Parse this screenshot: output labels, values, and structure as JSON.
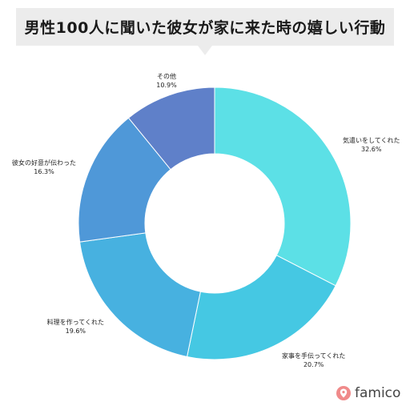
{
  "brand": {
    "name": "famico"
  },
  "chart_data": {
    "type": "pie",
    "title": "男性100人に聞いた彼女が家に来た時の嬉しい行動",
    "categories": [
      "気遣いをしてくれた",
      "家事を手伝ってくれた",
      "料理を作ってくれた",
      "彼女の好意が伝わった",
      "その他"
    ],
    "values": [
      32.6,
      20.7,
      19.6,
      16.3,
      10.9
    ],
    "value_labels": [
      "32.6%",
      "20.7%",
      "19.6%",
      "16.3%",
      "10.9%"
    ],
    "colors": [
      "#5ce0e6",
      "#45c8e3",
      "#47b1e0",
      "#4f98d8",
      "#5f80c9"
    ],
    "donut": true
  }
}
